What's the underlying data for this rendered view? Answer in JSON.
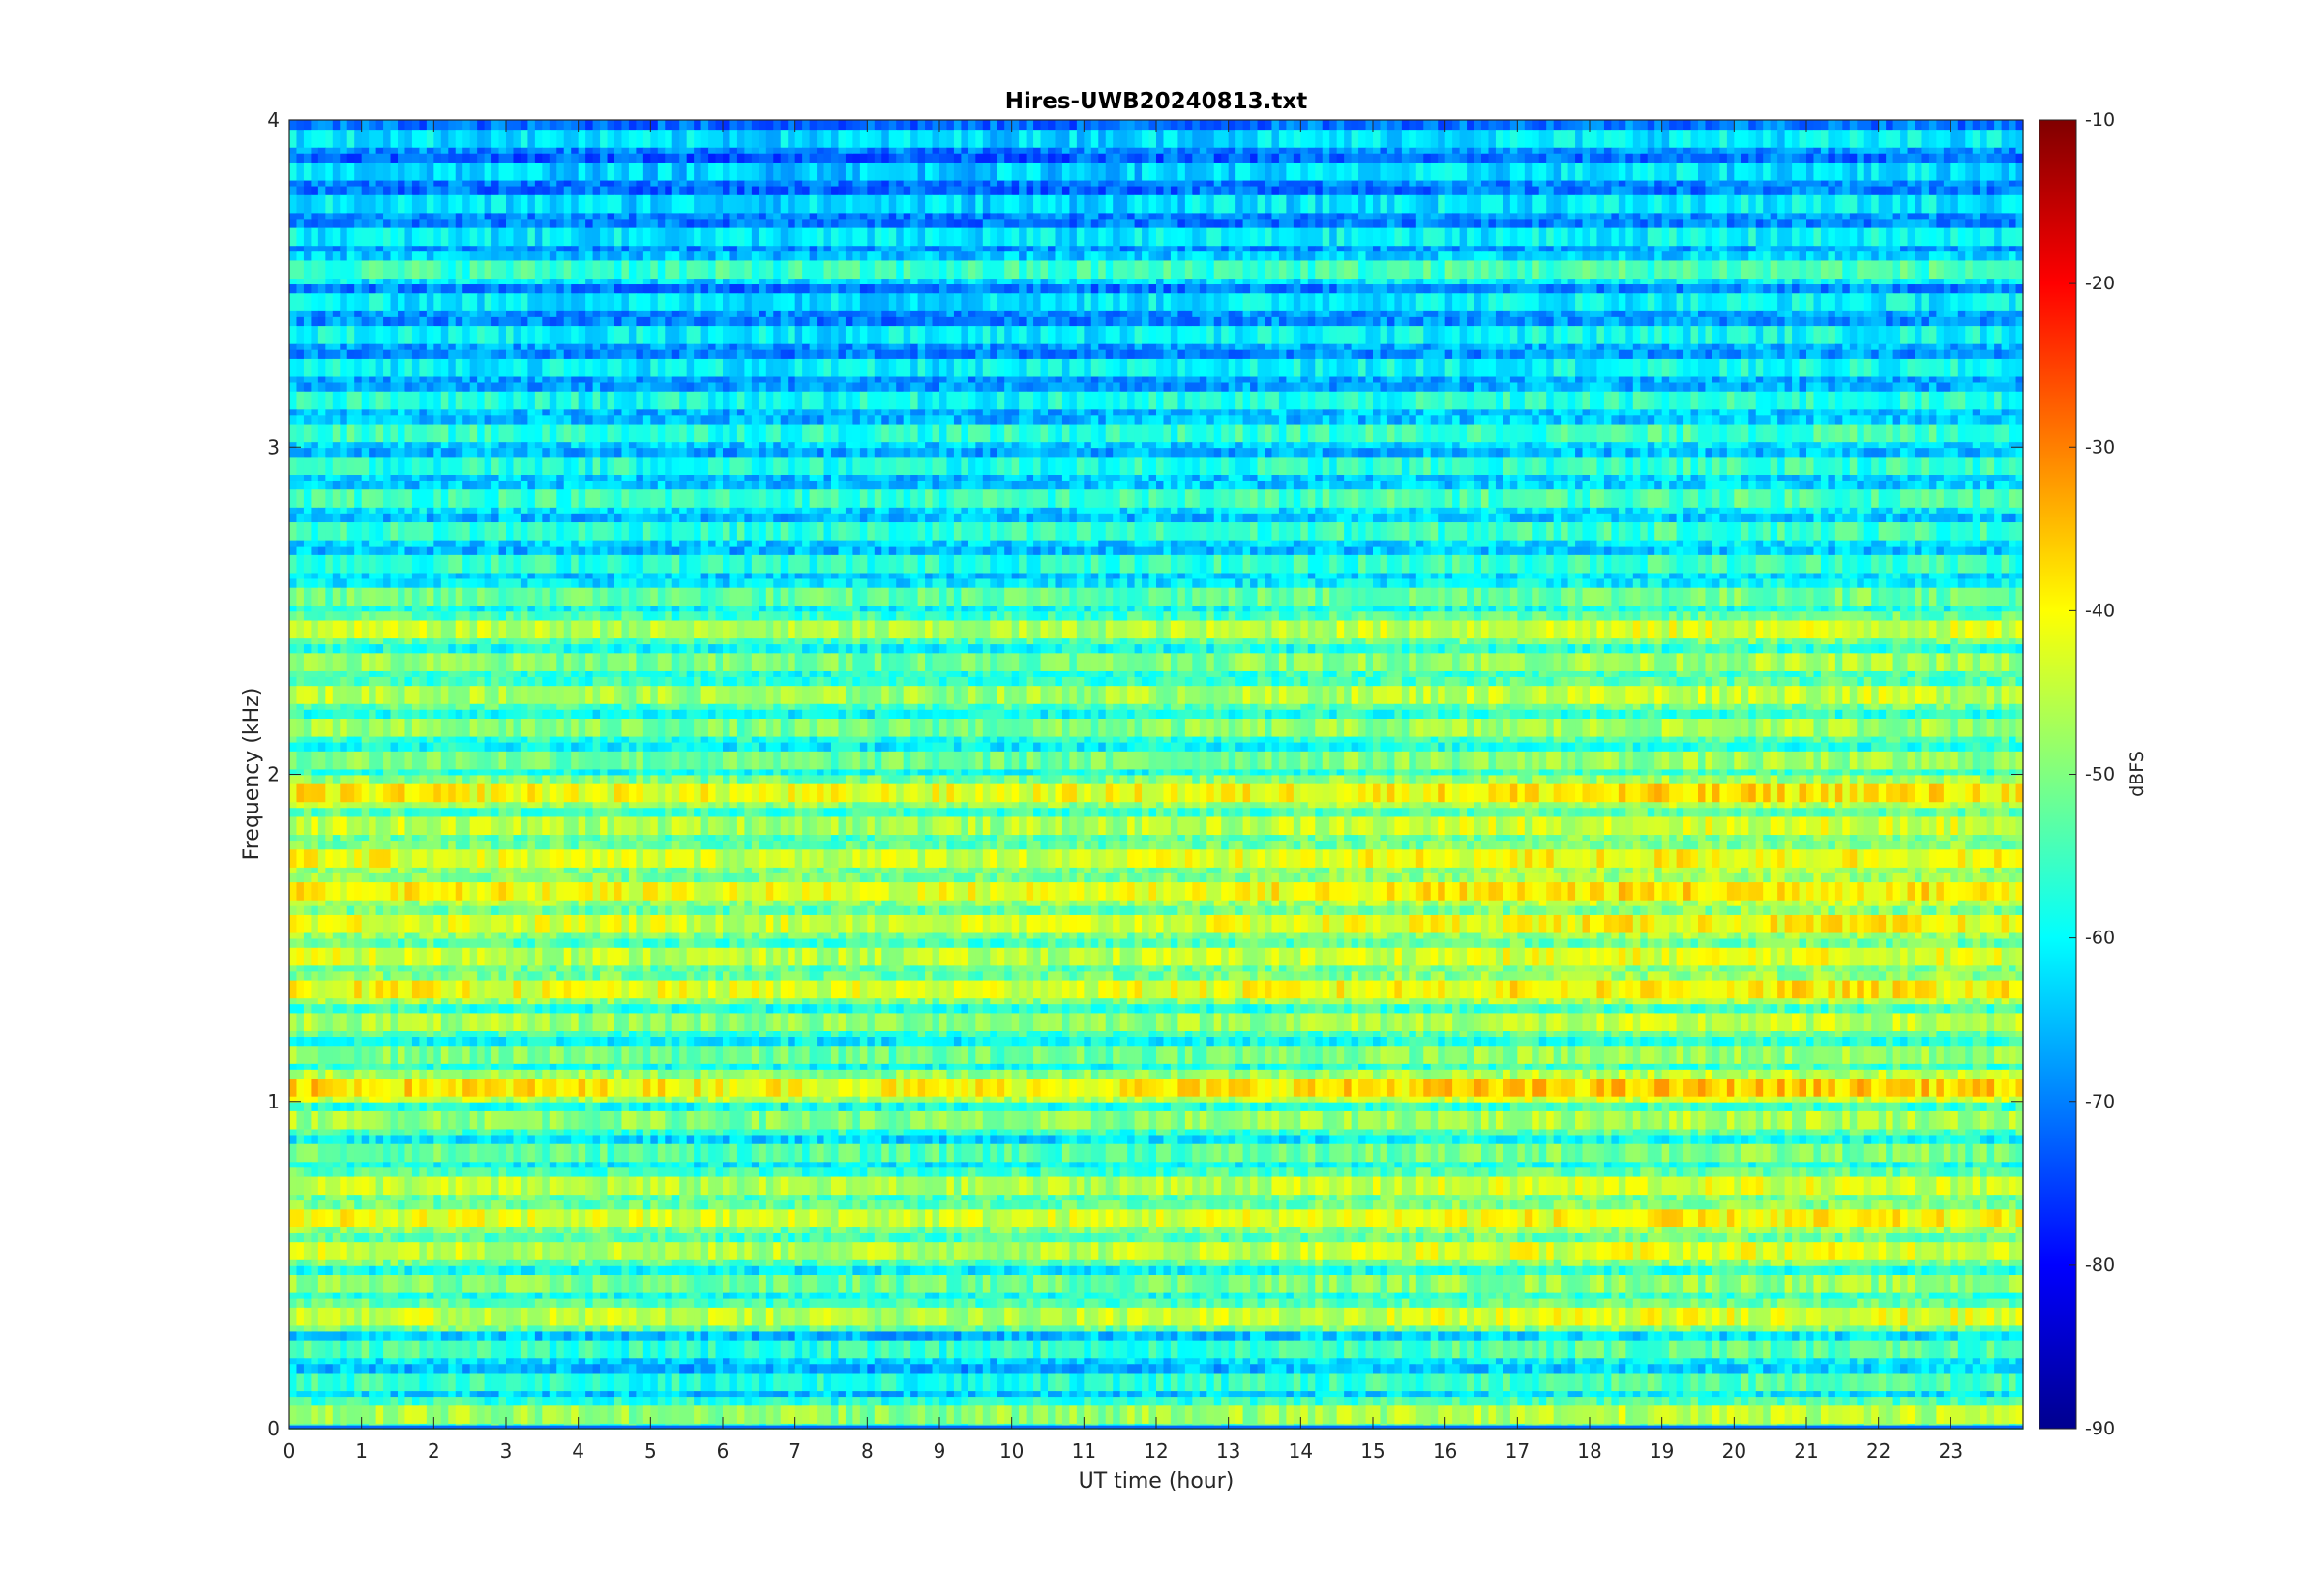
{
  "chart_data": {
    "type": "heatmap",
    "title": "Hires-UWB20240813.txt",
    "xlabel": "UT time (hour)",
    "ylabel": "Frequency (kHz)",
    "xlim": [
      0,
      24
    ],
    "ylim": [
      0,
      4
    ],
    "xticks": [
      0,
      1,
      2,
      3,
      4,
      5,
      6,
      7,
      8,
      9,
      10,
      11,
      12,
      13,
      14,
      15,
      16,
      17,
      18,
      19,
      20,
      21,
      22,
      23
    ],
    "yticks": [
      0,
      1,
      2,
      3,
      4
    ],
    "colorbar": {
      "label": "dBFS",
      "range": [
        -90,
        -10
      ],
      "ticks": [
        -10,
        -20,
        -30,
        -40,
        -50,
        -60,
        -70,
        -80,
        -90
      ],
      "colormap": "jet"
    },
    "bands_khz": [
      {
        "f": 0.05,
        "level": -47
      },
      {
        "f": 0.15,
        "level": -56
      },
      {
        "f": 0.25,
        "level": -55
      },
      {
        "f": 0.35,
        "level": -44
      },
      {
        "f": 0.45,
        "level": -50
      },
      {
        "f": 0.55,
        "level": -44
      },
      {
        "f": 0.65,
        "level": -42
      },
      {
        "f": 0.75,
        "level": -45
      },
      {
        "f": 0.85,
        "level": -52
      },
      {
        "f": 0.95,
        "level": -48
      },
      {
        "f": 1.05,
        "level": -38
      },
      {
        "f": 1.15,
        "level": -50
      },
      {
        "f": 1.25,
        "level": -47
      },
      {
        "f": 1.35,
        "level": -41
      },
      {
        "f": 1.45,
        "level": -44
      },
      {
        "f": 1.55,
        "level": -42
      },
      {
        "f": 1.65,
        "level": -40
      },
      {
        "f": 1.75,
        "level": -42
      },
      {
        "f": 1.85,
        "level": -45
      },
      {
        "f": 1.95,
        "level": -40
      },
      {
        "f": 2.05,
        "level": -50
      },
      {
        "f": 2.15,
        "level": -49
      },
      {
        "f": 2.25,
        "level": -46
      },
      {
        "f": 2.35,
        "level": -49
      },
      {
        "f": 2.45,
        "level": -45
      },
      {
        "f": 2.55,
        "level": -52
      },
      {
        "f": 2.65,
        "level": -56
      },
      {
        "f": 2.75,
        "level": -56
      },
      {
        "f": 2.85,
        "level": -55
      },
      {
        "f": 2.95,
        "level": -57
      },
      {
        "f": 3.05,
        "level": -56
      },
      {
        "f": 3.15,
        "level": -58
      },
      {
        "f": 3.25,
        "level": -60
      },
      {
        "f": 3.35,
        "level": -60
      },
      {
        "f": 3.45,
        "level": -61
      },
      {
        "f": 3.55,
        "level": -55
      },
      {
        "f": 3.65,
        "level": -61
      },
      {
        "f": 3.75,
        "level": -62
      },
      {
        "f": 3.85,
        "level": -63
      },
      {
        "f": 3.95,
        "level": -62
      }
    ]
  }
}
